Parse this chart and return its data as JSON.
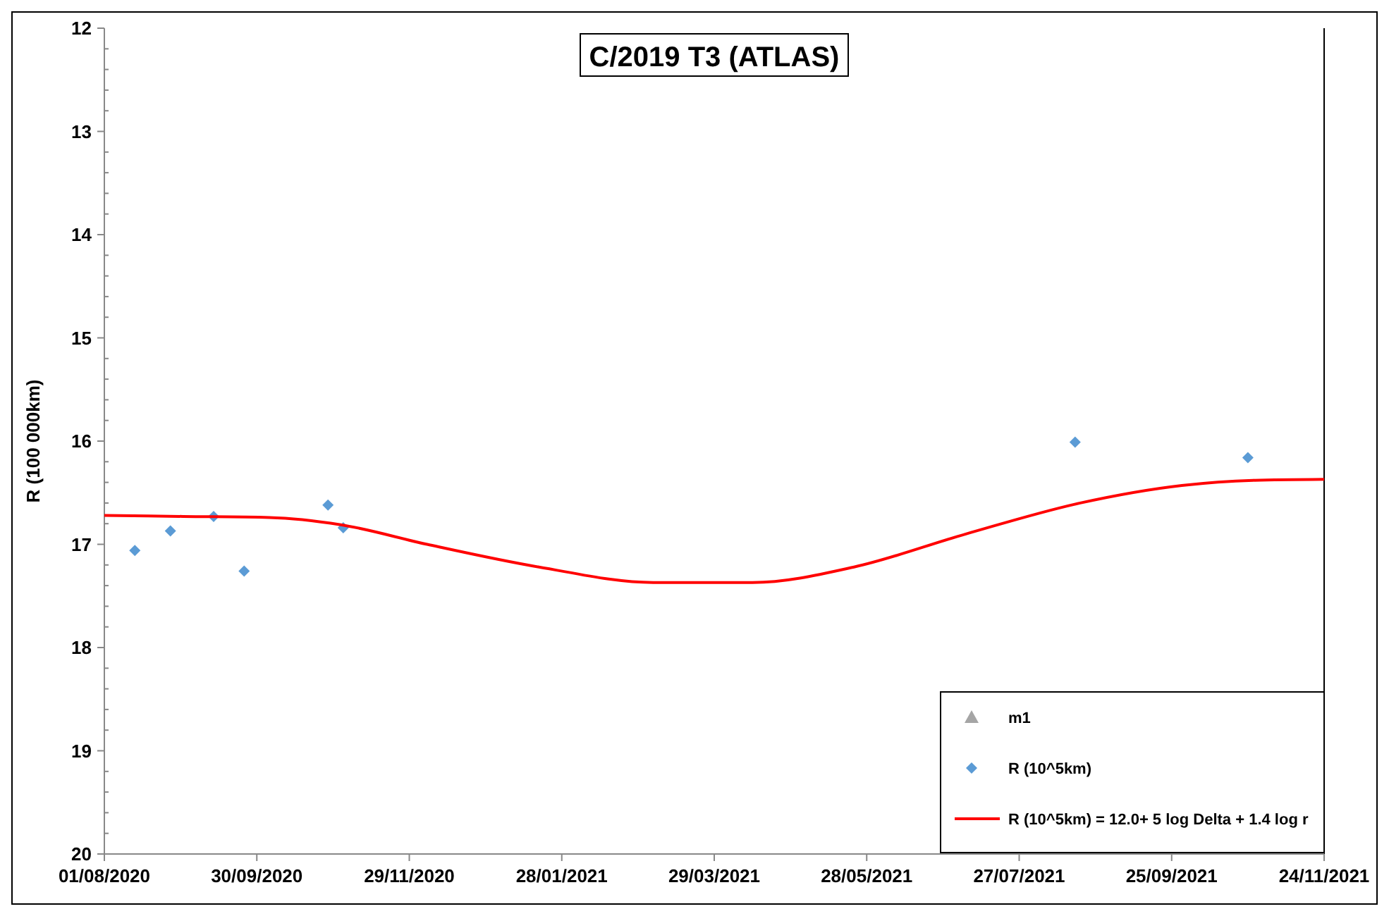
{
  "chart_data": {
    "type": "scatter",
    "title": "C/2019 T3 (ATLAS)",
    "ylabel": "R (100 000km)",
    "xlim": [
      "2020-08-01",
      "2021-11-24"
    ],
    "xticks": [
      {
        "value": "2020-08-01",
        "label": "01/08/2020"
      },
      {
        "value": "2020-09-30",
        "label": "30/09/2020"
      },
      {
        "value": "2020-11-29",
        "label": "29/11/2020"
      },
      {
        "value": "2021-01-28",
        "label": "28/01/2021"
      },
      {
        "value": "2021-03-29",
        "label": "29/03/2021"
      },
      {
        "value": "2021-05-28",
        "label": "28/05/2021"
      },
      {
        "value": "2021-07-27",
        "label": "27/07/2021"
      },
      {
        "value": "2021-09-25",
        "label": "25/09/2021"
      },
      {
        "value": "2021-11-24",
        "label": "24/11/2021"
      }
    ],
    "ylim": [
      20,
      12
    ],
    "yticks": [
      12,
      13,
      14,
      15,
      16,
      17,
      18,
      19,
      20
    ],
    "grid": false,
    "legend": "bottom right",
    "series": [
      {
        "name": "m1",
        "marker": "triangle",
        "color": "#a5a5a5"
      },
      {
        "name": "R (10^5km)",
        "marker": "diamond",
        "color": "#5b9bd5",
        "x": [
          "2020-08-13",
          "2020-08-27",
          "2020-09-13",
          "2020-09-25",
          "2020-10-28",
          "2020-11-03",
          "2021-08-18",
          "2021-10-25"
        ],
        "values": [
          17.06,
          16.87,
          16.73,
          17.26,
          16.62,
          16.84,
          16.01,
          16.16
        ]
      },
      {
        "name": "R (10^5km) = 12.0+ 5 log Delta + 1.4 log r",
        "type": "line",
        "line_style": "solid",
        "color": "#ff0000",
        "x": [
          "2020-08-01",
          "2020-09-01",
          "2020-10-05",
          "2020-11-02",
          "2020-12-06",
          "2021-01-19",
          "2021-03-05",
          "2021-04-13",
          "2021-05-23",
          "2021-07-06",
          "2021-08-20",
          "2021-09-29",
          "2021-10-27",
          "2021-11-24"
        ],
        "values": [
          16.72,
          16.73,
          16.74,
          16.81,
          17.0,
          17.22,
          17.37,
          17.37,
          17.22,
          16.9,
          16.6,
          16.43,
          16.38,
          16.37
        ]
      }
    ]
  }
}
